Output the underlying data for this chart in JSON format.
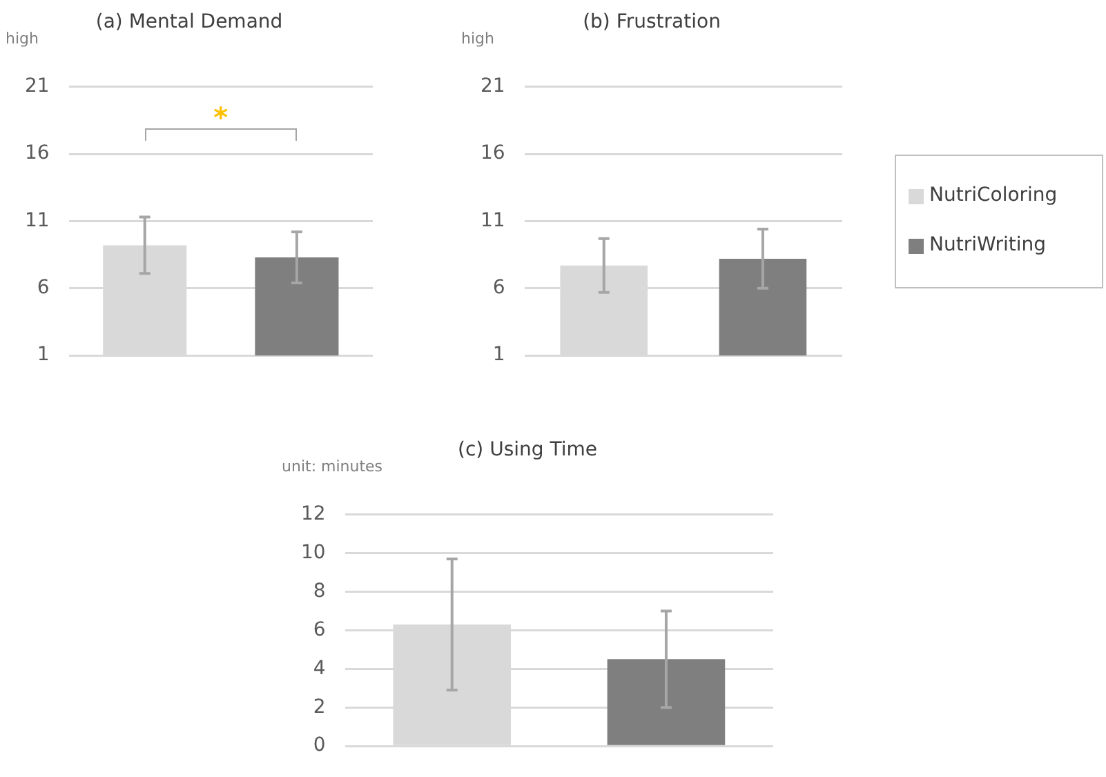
{
  "chart_data": [
    {
      "type": "bar",
      "title": "(a) Mental Demand",
      "ylabel": "high",
      "categories": [
        null
      ],
      "ylim": [
        1,
        21
      ],
      "yticks": [
        1,
        6,
        11,
        16,
        21
      ],
      "grid": "y",
      "annotations": [
        "*"
      ],
      "series": [
        {
          "color": "#d9d9d9",
          "values": [
            9.2
          ],
          "errors": [
            2.1
          ]
        },
        {
          "color": "#7f7f7f",
          "values": [
            8.3
          ],
          "errors": [
            1.9
          ]
        }
      ]
    },
    {
      "type": "bar",
      "title": "(b) Frustration",
      "ylabel": "high",
      "categories": [
        null
      ],
      "ylim": [
        1,
        21
      ],
      "yticks": [
        1,
        6,
        11,
        16,
        21
      ],
      "grid": "y",
      "legend": "right",
      "series": [
        {
          "name": "NutriColoring",
          "color": "#d9d9d9",
          "values": [
            7.7
          ],
          "errors": [
            2.0
          ]
        },
        {
          "name": "NutriWriting",
          "color": "#7f7f7f",
          "values": [
            8.2
          ],
          "errors": [
            2.2
          ]
        }
      ]
    },
    {
      "type": "bar",
      "title": "(c) Using Time",
      "ylabel": "unit: minutes",
      "categories": [
        null
      ],
      "ylim": [
        0,
        12
      ],
      "yticks": [
        0,
        2,
        4,
        6,
        8,
        10,
        12
      ],
      "grid": "y",
      "series": [
        {
          "color": "#d9d9d9",
          "values": [
            6.3
          ],
          "errors": [
            3.4
          ]
        },
        {
          "color": "#7f7f7f",
          "values": [
            4.5
          ],
          "errors": [
            2.5
          ]
        }
      ]
    }
  ]
}
